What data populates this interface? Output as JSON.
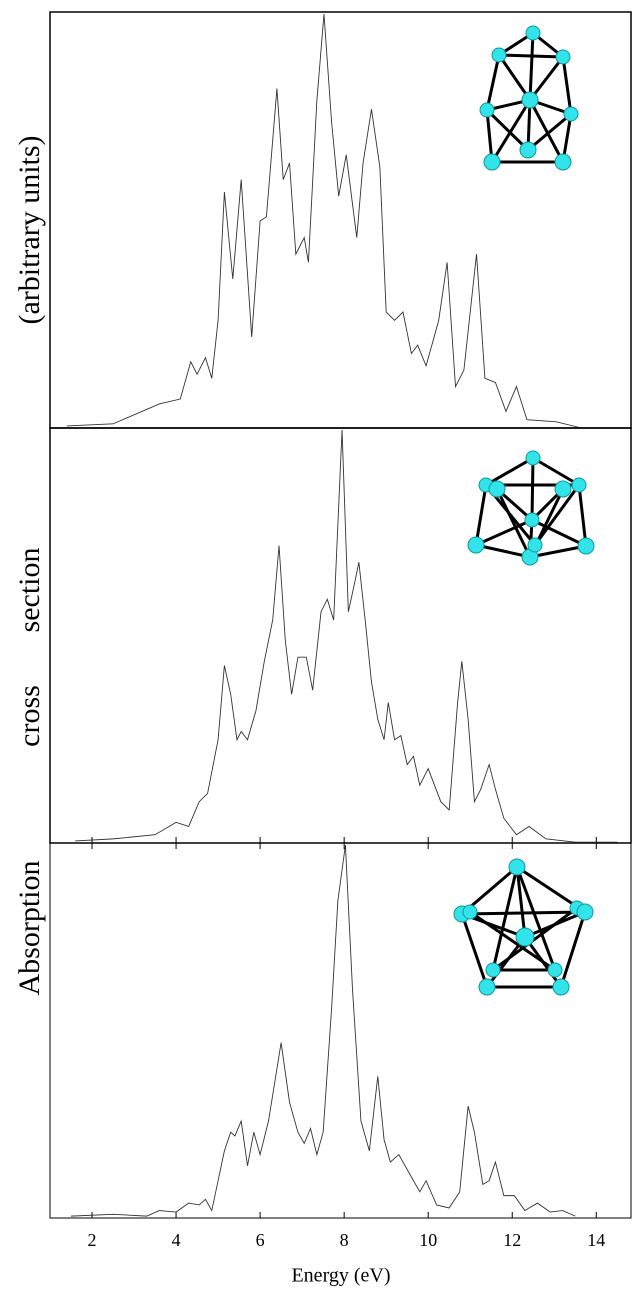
{
  "chart_data": [
    {
      "type": "line",
      "ylabel": "(arbitrary units)",
      "color": "#333333",
      "xlim": [
        1,
        14.85
      ],
      "ylim": [
        0,
        1
      ],
      "x": [
        1.4,
        2.5,
        3.6,
        4.1,
        4.35,
        4.5,
        4.7,
        4.85,
        5.0,
        5.15,
        5.35,
        5.55,
        5.8,
        6.0,
        6.15,
        6.4,
        6.55,
        6.7,
        6.85,
        7.05,
        7.15,
        7.35,
        7.52,
        7.7,
        7.87,
        8.05,
        8.3,
        8.45,
        8.65,
        8.85,
        9.0,
        9.2,
        9.4,
        9.6,
        9.75,
        9.95,
        10.25,
        10.45,
        10.65,
        10.85,
        11.15,
        11.35,
        11.6,
        11.85,
        12.1,
        12.35,
        13.05,
        13.65
      ],
      "values": [
        0.005,
        0.01,
        0.058,
        0.07,
        0.16,
        0.13,
        0.17,
        0.12,
        0.26,
        0.57,
        0.36,
        0.6,
        0.22,
        0.5,
        0.51,
        0.82,
        0.6,
        0.64,
        0.42,
        0.46,
        0.4,
        0.79,
        1.0,
        0.74,
        0.56,
        0.66,
        0.46,
        0.64,
        0.77,
        0.63,
        0.28,
        0.26,
        0.28,
        0.18,
        0.2,
        0.15,
        0.26,
        0.4,
        0.1,
        0.14,
        0.42,
        0.12,
        0.11,
        0.04,
        0.1,
        0.02,
        0.015,
        0
      ]
    },
    {
      "type": "line",
      "ylabel": [
        "cross",
        "section"
      ],
      "color": "#333333",
      "xlim": [
        1,
        14.85
      ],
      "ylim": [
        0,
        1
      ],
      "x": [
        1.6,
        2.5,
        3.5,
        4.0,
        4.3,
        4.55,
        4.75,
        5.0,
        5.15,
        5.3,
        5.45,
        5.55,
        5.7,
        5.9,
        6.1,
        6.3,
        6.45,
        6.6,
        6.75,
        6.9,
        7.1,
        7.25,
        7.45,
        7.6,
        7.75,
        7.95,
        8.1,
        8.25,
        8.35,
        8.5,
        8.65,
        8.8,
        8.95,
        9.05,
        9.2,
        9.35,
        9.5,
        9.65,
        9.8,
        10.0,
        10.3,
        10.5,
        10.7,
        10.8,
        10.95,
        11.1,
        11.25,
        11.45,
        11.6,
        11.8,
        12.1,
        12.4,
        12.8,
        13.5,
        14.5
      ],
      "values": [
        0.005,
        0.01,
        0.02,
        0.05,
        0.04,
        0.1,
        0.12,
        0.25,
        0.43,
        0.36,
        0.25,
        0.27,
        0.25,
        0.32,
        0.44,
        0.54,
        0.72,
        0.49,
        0.36,
        0.45,
        0.45,
        0.37,
        0.56,
        0.59,
        0.54,
        1.0,
        0.56,
        0.63,
        0.68,
        0.54,
        0.39,
        0.3,
        0.25,
        0.34,
        0.25,
        0.26,
        0.19,
        0.21,
        0.14,
        0.18,
        0.1,
        0.08,
        0.34,
        0.44,
        0.3,
        0.1,
        0.13,
        0.19,
        0.13,
        0.06,
        0.02,
        0.04,
        0.01,
        0.002,
        0.002
      ]
    },
    {
      "type": "line",
      "ylabel": "Absorption",
      "xlabel": "Energy (eV)",
      "color": "#333333",
      "xlim": [
        1,
        14.85
      ],
      "ylim": [
        0,
        1
      ],
      "xticks": [
        2,
        4,
        6,
        8,
        10,
        12,
        14
      ],
      "x": [
        1.5,
        2.5,
        3.3,
        3.6,
        4.0,
        4.3,
        4.55,
        4.7,
        4.85,
        5.0,
        5.15,
        5.3,
        5.4,
        5.55,
        5.7,
        5.85,
        6.0,
        6.2,
        6.5,
        6.7,
        6.9,
        7.05,
        7.2,
        7.35,
        7.5,
        7.7,
        7.85,
        8.03,
        8.2,
        8.4,
        8.6,
        8.8,
        8.95,
        9.1,
        9.3,
        9.5,
        9.8,
        9.95,
        10.2,
        10.5,
        10.75,
        10.95,
        11.1,
        11.3,
        11.45,
        11.6,
        11.8,
        12.05,
        12.3,
        12.6,
        12.9,
        13.2,
        13.5
      ],
      "values": [
        0.005,
        0.01,
        0.005,
        0.02,
        0.016,
        0.04,
        0.035,
        0.05,
        0.02,
        0.1,
        0.18,
        0.23,
        0.22,
        0.26,
        0.14,
        0.23,
        0.17,
        0.26,
        0.47,
        0.31,
        0.23,
        0.2,
        0.24,
        0.17,
        0.23,
        0.56,
        0.85,
        1.0,
        0.61,
        0.26,
        0.18,
        0.38,
        0.21,
        0.15,
        0.17,
        0.13,
        0.07,
        0.1,
        0.035,
        0.027,
        0.07,
        0.3,
        0.23,
        0.09,
        0.1,
        0.15,
        0.06,
        0.06,
        0.02,
        0.04,
        0.016,
        0.02,
        0.005
      ]
    }
  ]
}
